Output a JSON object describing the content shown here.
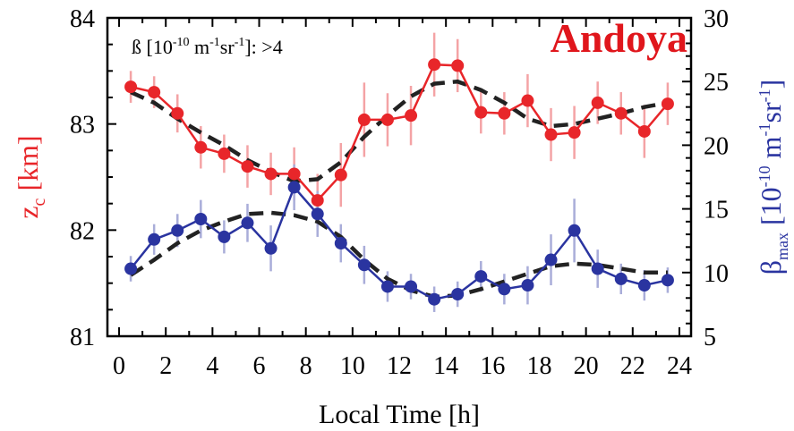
{
  "chart_data": {
    "type": "line",
    "station_label": "Andoya",
    "annotation": {
      "prefix": "ß [10",
      "exp1": "-10",
      "mid1": " m",
      "exp2": "-1",
      "mid2": "sr",
      "exp3": "-1",
      "suffix": "]: >4"
    },
    "xlabel": "Local Time [h]",
    "ylabel_left": {
      "base": "z",
      "sub": "c",
      "rest": " [km]"
    },
    "ylabel_right": {
      "base": "β",
      "sub": "max",
      "rest1": " [10",
      "sup1": "-10",
      "rest2": " m",
      "sup2": "-1",
      "rest3": "sr",
      "sup3": "-1",
      "rest4": "]"
    },
    "xlim": [
      -0.5,
      24.5
    ],
    "ylim_left": [
      81,
      84
    ],
    "ylim_right": [
      5,
      30
    ],
    "x_ticks": [
      0,
      2,
      4,
      6,
      8,
      10,
      12,
      14,
      16,
      18,
      20,
      22,
      24
    ],
    "y_left_ticks": [
      81,
      82,
      83,
      84
    ],
    "y_right_ticks": [
      5,
      10,
      15,
      20,
      25,
      30
    ],
    "x": [
      0.5,
      1.5,
      2.5,
      3.5,
      4.5,
      5.5,
      6.5,
      7.5,
      8.5,
      9.5,
      10.5,
      11.5,
      12.5,
      13.5,
      14.5,
      15.5,
      16.5,
      17.5,
      18.5,
      19.5,
      20.5,
      21.5,
      22.5,
      23.5
    ],
    "series": [
      {
        "axis": "left",
        "color": "#e8262a",
        "values": [
          83.35,
          83.3,
          83.1,
          82.78,
          82.72,
          82.6,
          82.53,
          82.53,
          82.28,
          82.52,
          83.04,
          83.04,
          83.08,
          83.56,
          83.55,
          83.11,
          83.1,
          83.22,
          82.9,
          82.92,
          83.2,
          83.1,
          82.93,
          83.19
        ],
        "errors": [
          0.15,
          0.15,
          0.18,
          0.2,
          0.18,
          0.2,
          0.2,
          0.25,
          0.25,
          0.3,
          0.35,
          0.25,
          0.28,
          0.3,
          0.25,
          0.2,
          0.2,
          0.25,
          0.25,
          0.25,
          0.2,
          0.2,
          0.25,
          0.2
        ],
        "fit": [
          83.3,
          83.2,
          83.05,
          82.92,
          82.8,
          82.66,
          82.55,
          82.46,
          82.48,
          82.64,
          82.88,
          83.08,
          83.26,
          83.38,
          83.4,
          83.32,
          83.2,
          83.05,
          82.98,
          83.0,
          83.05,
          83.1,
          83.16,
          83.2
        ]
      },
      {
        "axis": "right",
        "color": "#2a34a0",
        "values": [
          10.3,
          12.6,
          13.3,
          14.2,
          12.8,
          13.9,
          11.9,
          16.7,
          14.6,
          12.3,
          10.6,
          8.9,
          8.9,
          7.9,
          8.3,
          9.7,
          8.7,
          9.0,
          11.0,
          13.3,
          10.3,
          9.5,
          9.0,
          9.4
        ],
        "errors": [
          1.0,
          1.2,
          1.3,
          1.5,
          1.3,
          1.5,
          1.8,
          1.8,
          1.8,
          1.5,
          1.5,
          1.2,
          1.0,
          1.0,
          1.0,
          1.2,
          1.2,
          1.5,
          2.0,
          2.5,
          1.5,
          1.2,
          1.2,
          1.0
        ],
        "fit": [
          9.8,
          11.0,
          12.3,
          13.3,
          14.0,
          14.6,
          14.7,
          14.5,
          14.0,
          12.8,
          11.0,
          9.5,
          8.6,
          8.1,
          8.2,
          8.7,
          9.3,
          9.9,
          10.5,
          10.7,
          10.6,
          10.3,
          10.0,
          10.0
        ]
      }
    ]
  }
}
